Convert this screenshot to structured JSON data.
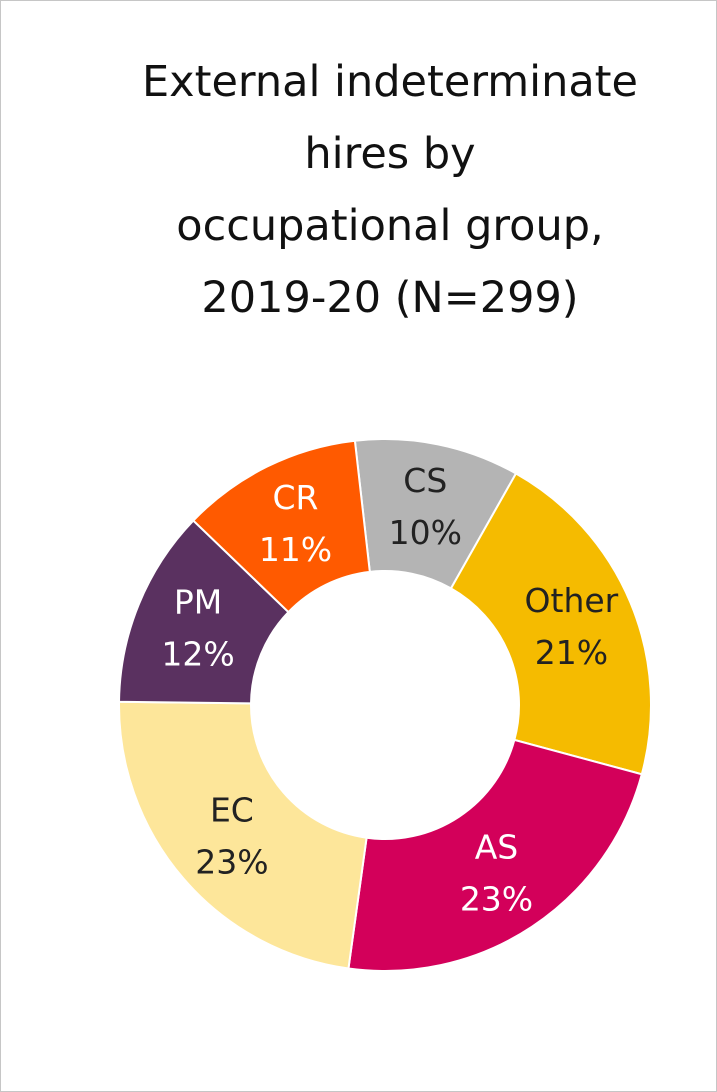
{
  "chart_data": {
    "type": "pie",
    "style": "donut",
    "title_lines": [
      "External indeterminate",
      "hires by",
      "occupational group,",
      "2019-20 (N=299)"
    ],
    "slices": [
      {
        "name": "CS",
        "value": 10,
        "label": "10%",
        "color": "#b4b4b4",
        "text_color": "#222222"
      },
      {
        "name": "Other",
        "value": 21,
        "label": "21%",
        "color": "#f5bb00",
        "text_color": "#222222"
      },
      {
        "name": "AS",
        "value": 23,
        "label": "23%",
        "color": "#d3005a",
        "text_color": "#ffffff"
      },
      {
        "name": "EC",
        "value": 23,
        "label": "23%",
        "color": "#fde69a",
        "text_color": "#222222"
      },
      {
        "name": "PM",
        "value": 12,
        "label": "12%",
        "color": "#5a3160",
        "text_color": "#ffffff"
      },
      {
        "name": "CR",
        "value": 11,
        "label": "11%",
        "color": "#ff5a00",
        "text_color": "#ffffff"
      }
    ],
    "legend": "none"
  }
}
